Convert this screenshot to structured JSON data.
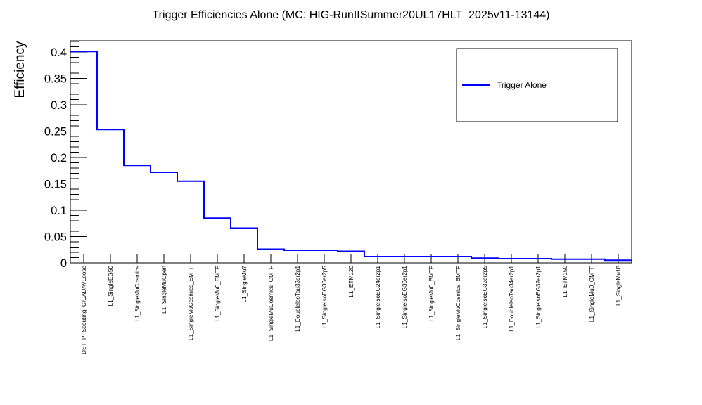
{
  "chart_data": {
    "type": "line",
    "title": "Trigger Efficiencies Alone (MC: HIG-RunIISummer20UL17HLT_2025v11-13144)",
    "xlabel": "",
    "ylabel": "Efficiency",
    "ylim": [
      0,
      0.4
    ],
    "yticks": [
      0,
      0.05,
      0.1,
      0.15,
      0.2,
      0.25,
      0.3,
      0.35,
      0.4
    ],
    "ytick_labels": [
      "0",
      "0.05",
      "0.1",
      "0.15",
      "0.2",
      "0.25",
      "0.3",
      "0.35",
      "0.4"
    ],
    "categories": [
      "DST_PFScouting_CICADAVLoose",
      "L1_SingleEG50",
      "L1_SingleMuCosmics",
      "L1_SingleMuOpen",
      "L1_SingleMuCosmics_EMTF",
      "L1_SingleMu0_EMTF",
      "L1_SingleMu7",
      "L1_SingleMuCosmics_OMTF",
      "L1_DoubleIsoTau32er2p1",
      "L1_SingleIsoEG30er2p5",
      "L1_ETM120",
      "L1_SingleIsoEG24er2p1",
      "L1_SingleIsoEG30er2p1",
      "L1_SingleMu0_BMTF",
      "L1_SingleMuCosmics_BMTF",
      "L1_SingleIsoEG32er2p5",
      "L1_DoubleIsoTau34er2p1",
      "L1_SingleIsoEG32er2p1",
      "L1_ETM150",
      "L1_SingleMu0_OMTF",
      "L1_SingleMu18"
    ],
    "series": [
      {
        "name": "Trigger Alone",
        "color": "#0000ff",
        "style": "step",
        "values": [
          0.401,
          0.253,
          0.185,
          0.172,
          0.155,
          0.085,
          0.066,
          0.026,
          0.024,
          0.024,
          0.022,
          0.012,
          0.012,
          0.012,
          0.012,
          0.009,
          0.008,
          0.008,
          0.007,
          0.007,
          0.005
        ]
      }
    ],
    "legend": {
      "position": "top-right",
      "entries": [
        "Trigger Alone"
      ]
    },
    "grid": false
  }
}
